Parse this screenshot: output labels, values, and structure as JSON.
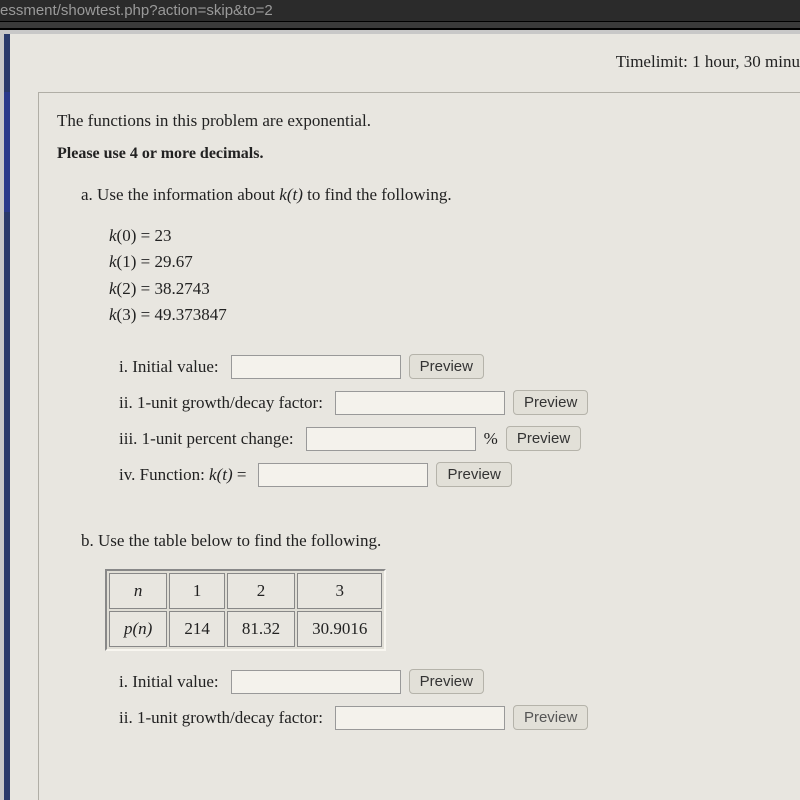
{
  "url_fragment": "essment/showtest.php?action=skip&to=2",
  "timelimit": "Timelimit: 1 hour, 30 minu",
  "intro1": "The functions in this problem are exponential.",
  "intro2": "Please use 4 or more decimals.",
  "partA": {
    "prompt_prefix": "a. Use the information about ",
    "prompt_fn": "k(t)",
    "prompt_suffix": " to find the following.",
    "givens": [
      {
        "fn": "k",
        "arg": "0",
        "val": "23"
      },
      {
        "fn": "k",
        "arg": "1",
        "val": "29.67"
      },
      {
        "fn": "k",
        "arg": "2",
        "val": "38.2743"
      },
      {
        "fn": "k",
        "arg": "3",
        "val": "49.373847"
      }
    ],
    "answers": {
      "i_label": "i. Initial value:",
      "ii_label": "ii. 1-unit growth/decay factor:",
      "iii_label": "iii. 1-unit percent change:",
      "iv_label_prefix": "iv. Function: ",
      "iv_fn": "k(t)",
      "iv_label_suffix": " =",
      "percent_symbol": "%",
      "preview_label": "Preview"
    }
  },
  "partB": {
    "prompt": "b. Use the table below to find the following.",
    "table": {
      "var": "n",
      "fn": "p(n)",
      "cols": [
        "1",
        "2",
        "3"
      ],
      "vals": [
        "214",
        "81.32",
        "30.9016"
      ]
    },
    "answers": {
      "i_label": "i. Initial value:",
      "ii_label": "ii. 1-unit growth/decay factor:",
      "preview_label": "Preview"
    }
  },
  "colors": {
    "page_bg": "#e8e6e0",
    "accent": "#2a3a8a",
    "text": "#222222",
    "input_border": "#999999",
    "button_bg": "#e2e0d8",
    "button_border": "#b5b3aa",
    "outer_bg": "#c8c8c8",
    "url_bg": "#2b2b2b",
    "url_text": "#9a9a9a"
  }
}
